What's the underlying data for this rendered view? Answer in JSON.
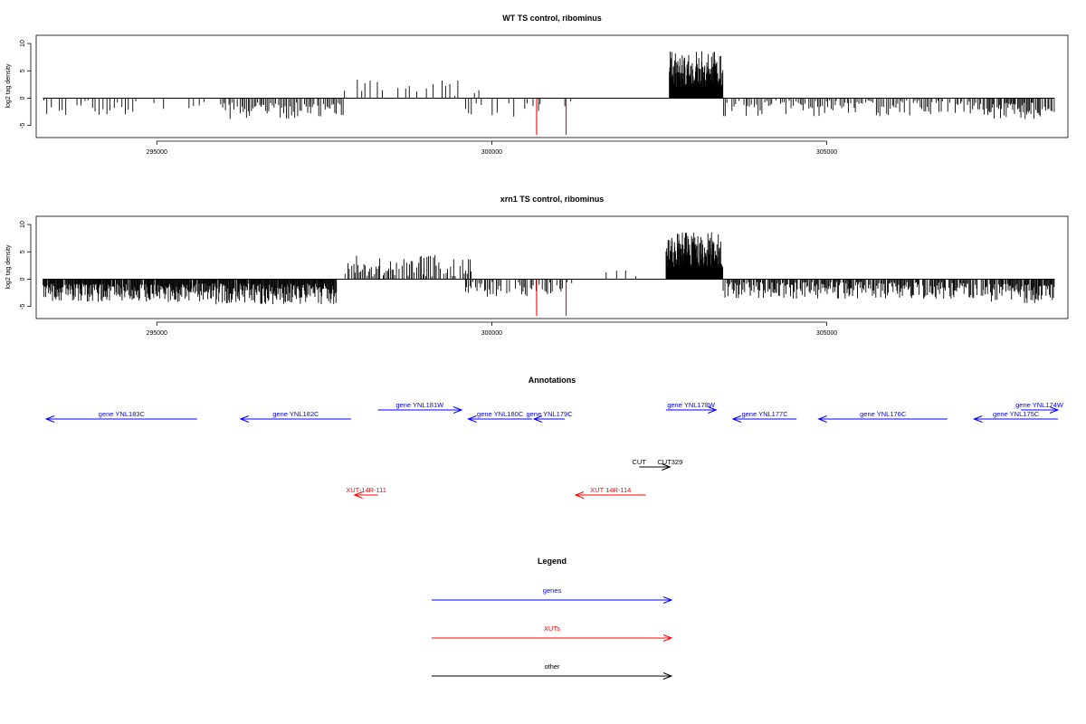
{
  "colors": {
    "gene": "#0000ff",
    "xut": "#ff0000",
    "other": "#000000",
    "highlight": "#ff0000",
    "bar": "#000000"
  },
  "chart_data": [
    {
      "type": "bar",
      "title": "WT TS control, ribominus",
      "xlabel": "",
      "ylabel": "log2 tag density",
      "xlim": [
        293200,
        308600
      ],
      "ylim": [
        -7.2,
        11.5
      ],
      "yticks": [
        -5,
        0,
        5,
        10
      ],
      "xticks": [
        295000,
        300000,
        305000
      ],
      "xtick_labels": [
        "295000",
        "300000",
        "305000"
      ],
      "ytick_labels": [
        "-5",
        "0",
        "5",
        "10"
      ],
      "highlight_positions": [
        300670,
        301110
      ],
      "highlight_value": -6.7,
      "density": [
        {
          "from": 293300,
          "to": 294700,
          "sign": -1,
          "min": 0.4,
          "max": 3.2,
          "step": 55,
          "prob": 0.75
        },
        {
          "from": 294700,
          "to": 295800,
          "sign": -1,
          "min": 0.3,
          "max": 2.4,
          "step": 75,
          "prob": 0.5
        },
        {
          "from": 295950,
          "to": 297800,
          "sign": -1,
          "min": 0.8,
          "max": 3.8,
          "step": 24,
          "prob": 0.9
        },
        {
          "from": 297800,
          "to": 299800,
          "sign": 1,
          "min": 0.4,
          "max": 3.4,
          "step": 60,
          "prob": 0.55
        },
        {
          "from": 299600,
          "to": 301200,
          "sign": -1,
          "min": 0.5,
          "max": 3.4,
          "step": 40,
          "prob": 0.45
        },
        {
          "from": 302650,
          "to": 303450,
          "sign": 1,
          "min": 2.0,
          "max": 8.6,
          "step": 6,
          "prob": 1.0
        },
        {
          "from": 303450,
          "to": 307400,
          "sign": -1,
          "min": 0.4,
          "max": 3.4,
          "step": 26,
          "prob": 0.8
        },
        {
          "from": 307400,
          "to": 308400,
          "sign": -1,
          "min": 0.8,
          "max": 3.8,
          "step": 16,
          "prob": 0.9
        }
      ]
    },
    {
      "type": "bar",
      "title": "xrn1 TS control, ribominus",
      "xlabel": "",
      "ylabel": "log2 tag density",
      "xlim": [
        293200,
        308600
      ],
      "ylim": [
        -7.2,
        11.5
      ],
      "yticks": [
        -5,
        0,
        5,
        10
      ],
      "xticks": [
        295000,
        300000,
        305000
      ],
      "xtick_labels": [
        "295000",
        "300000",
        "305000"
      ],
      "ytick_labels": [
        "-5",
        "0",
        "5",
        "10"
      ],
      "highlight_positions": [
        300670,
        301110
      ],
      "highlight_value": -6.7,
      "density": [
        {
          "from": 293300,
          "to": 295800,
          "sign": -1,
          "min": 0.8,
          "max": 4.2,
          "step": 10,
          "prob": 0.95
        },
        {
          "from": 295800,
          "to": 297700,
          "sign": -1,
          "min": 0.8,
          "max": 4.6,
          "step": 10,
          "prob": 0.95
        },
        {
          "from": 297800,
          "to": 299700,
          "sign": 1,
          "min": 0.5,
          "max": 4.4,
          "step": 22,
          "prob": 0.8
        },
        {
          "from": 299600,
          "to": 301200,
          "sign": -1,
          "min": 0.5,
          "max": 3.2,
          "step": 22,
          "prob": 0.7
        },
        {
          "from": 301200,
          "to": 302600,
          "sign": 1,
          "min": 0.5,
          "max": 1.8,
          "step": 150,
          "prob": 0.35
        },
        {
          "from": 302600,
          "to": 303450,
          "sign": 1,
          "min": 2.0,
          "max": 8.6,
          "step": 5,
          "prob": 1.0
        },
        {
          "from": 303450,
          "to": 307300,
          "sign": -1,
          "min": 0.5,
          "max": 3.6,
          "step": 14,
          "prob": 0.85
        },
        {
          "from": 307300,
          "to": 308400,
          "sign": -1,
          "min": 0.8,
          "max": 4.4,
          "step": 12,
          "prob": 0.9
        }
      ]
    }
  ],
  "annotations": {
    "title": "Annotations",
    "features": [
      {
        "label": "gene YNL183C",
        "start": 293350,
        "end": 295600,
        "strand": "-",
        "type": "gene",
        "lane": 0
      },
      {
        "label": "gene YNL182C",
        "start": 296250,
        "end": 297900,
        "strand": "-",
        "type": "gene",
        "lane": 0
      },
      {
        "label": "gene YNL181W",
        "start": 298300,
        "end": 299550,
        "strand": "+",
        "type": "gene",
        "lane": 1
      },
      {
        "label": "gene YNL180C",
        "start": 299650,
        "end": 300600,
        "strand": "-",
        "type": "gene",
        "lane": 0
      },
      {
        "label": "gene YNL179C",
        "start": 300630,
        "end": 301090,
        "strand": "-",
        "type": "gene",
        "lane": 0
      },
      {
        "label": "gene YNL178W",
        "start": 302600,
        "end": 303350,
        "strand": "+",
        "type": "gene",
        "lane": 1
      },
      {
        "label": "gene YNL177C",
        "start": 303600,
        "end": 304550,
        "strand": "-",
        "type": "gene",
        "lane": 0
      },
      {
        "label": "gene YNL176C",
        "start": 304880,
        "end": 306800,
        "strand": "-",
        "type": "gene",
        "lane": 0
      },
      {
        "label": "gene YNL175C",
        "start": 307200,
        "end": 308450,
        "strand": "-",
        "type": "gene",
        "lane": 0
      },
      {
        "label": "gene YNL174W",
        "start": 307900,
        "end": 308450,
        "strand": "+",
        "type": "gene",
        "lane": 1
      },
      {
        "label": "CUT",
        "start": 302200,
        "end": 302660,
        "strand": "+",
        "type": "other",
        "lane": 2,
        "label_at": "start"
      },
      {
        "label": "CUT329",
        "start": 302200,
        "end": 302660,
        "strand": "+",
        "type": "other",
        "lane": 2,
        "label_at": "end"
      },
      {
        "label": "XUT-14R-111",
        "start": 297950,
        "end": 298300,
        "strand": "-",
        "type": "xut",
        "lane": 3
      },
      {
        "label": "XUT 14R-114",
        "start": 301250,
        "end": 302300,
        "strand": "-",
        "type": "xut",
        "lane": 3
      }
    ]
  },
  "legend": {
    "title": "Legend",
    "items": [
      {
        "label": "genes",
        "type": "gene"
      },
      {
        "label": "XUTs",
        "type": "xut"
      },
      {
        "label": "other",
        "type": "other"
      }
    ]
  }
}
